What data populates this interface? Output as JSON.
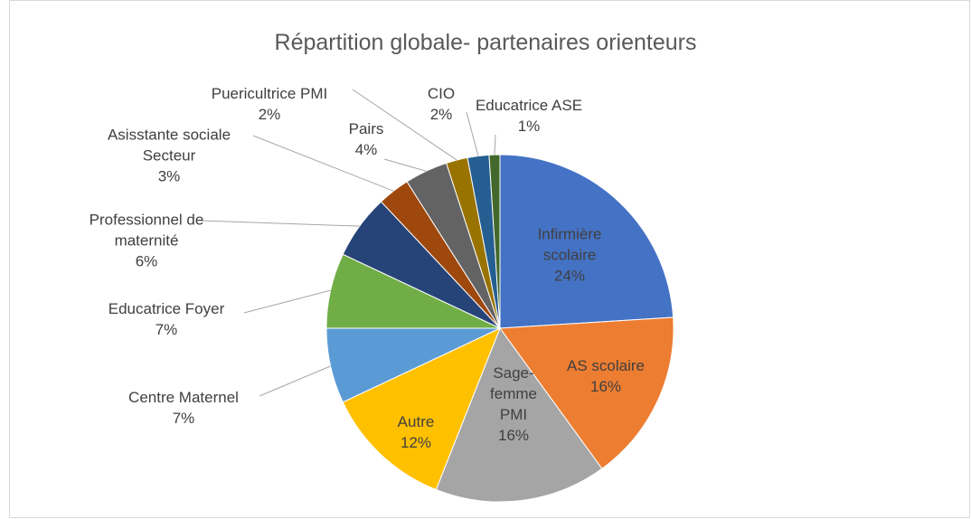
{
  "chart_data": {
    "type": "pie",
    "title": "Répartition globale- partenaires orienteurs",
    "categories": [
      "Infirmière scolaire",
      "AS scolaire",
      "Sage-femme PMI",
      "Autre",
      "Centre Maternel",
      "Educatrice Foyer",
      "Professionnel de maternité",
      "Asisstante sociale Secteur",
      "Pairs",
      "Puericultrice PMI",
      "CIO",
      "Educatrice ASE"
    ],
    "values": [
      24,
      16,
      16,
      12,
      7,
      7,
      6,
      3,
      4,
      2,
      2,
      1
    ],
    "value_labels": [
      "24%",
      "16%",
      "16%",
      "12%",
      "7%",
      "7%",
      "6%",
      "3%",
      "4%",
      "2%",
      "2%",
      "1%"
    ],
    "colors": [
      "#4472c4",
      "#ed7d31",
      "#a5a5a5",
      "#ffc000",
      "#5b9bd5",
      "#70ad47",
      "#264478",
      "#9e480e",
      "#636363",
      "#997300",
      "#255e91",
      "#43682b"
    ]
  }
}
